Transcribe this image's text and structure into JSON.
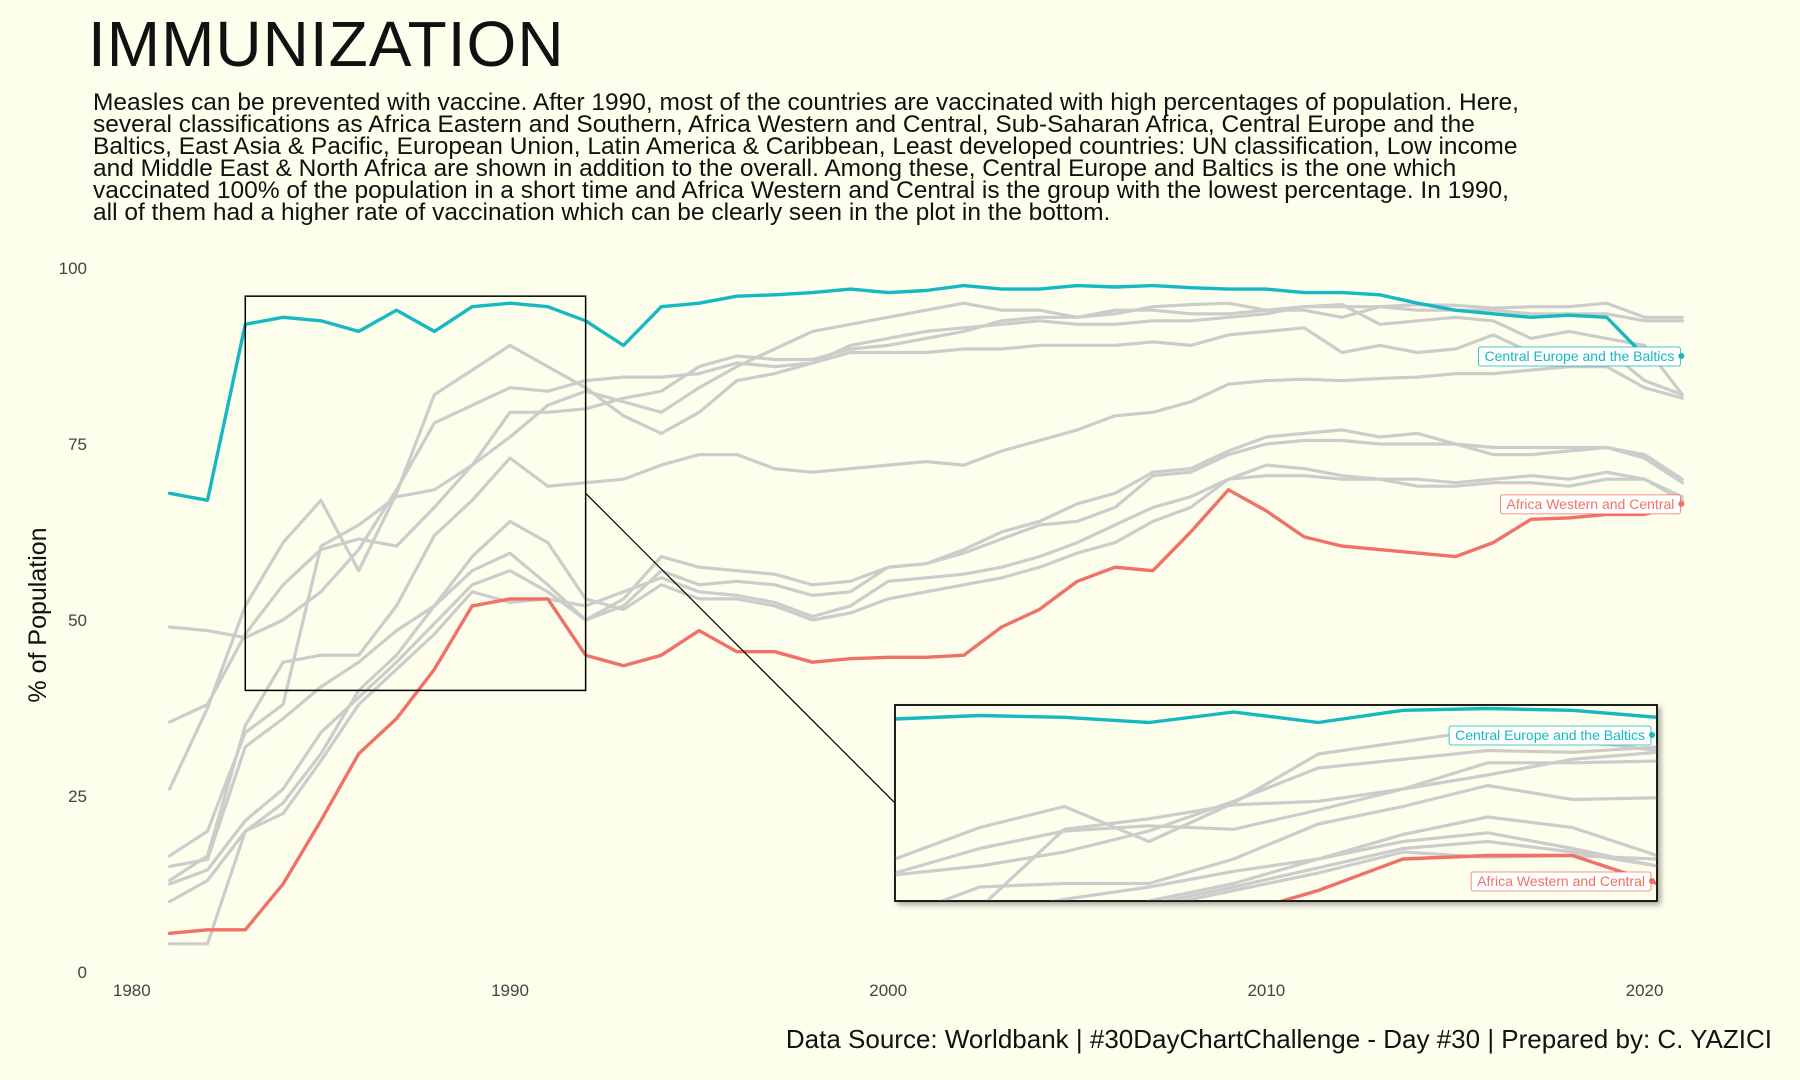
{
  "title": "IMMUNIZATION",
  "subtitle": "Measles can be prevented with vaccine. After 1990, most of the countries are vaccinated with high percentages of population. Here, several classifications as Africa Eastern and Southern, Africa Western and Central, Sub-Saharan Africa, Central Europe and the Baltics, East Asia & Pacific, European Union, Latin America & Caribbean, Least developed countries: UN classification, Low income and Middle East & North Africa are shown in addition to the overall. Among these, Central Europe and Baltics is the one which vaccinated 100% of the population in a short time and Africa Western and Central is the group with the lowest percentage. In 1990, all of them had a higher rate of vaccination which can be clearly seen in the plot in the bottom.",
  "caption": "Data Source: Worldbank  | #30DayChartChallenge - Day #30 | Prepared by: C. YAZICI",
  "colors": {
    "background": "#fefeec",
    "central_europe": "#16b8c1",
    "africa_western": "#f07167",
    "other": "#cccccc"
  },
  "chart_data": {
    "type": "line",
    "xlabel": "",
    "ylabel": "% of Population",
    "xlim": [
      1979,
      2023
    ],
    "ylim": [
      0,
      100
    ],
    "x_ticks": [
      1980,
      1990,
      2000,
      2010,
      2020
    ],
    "y_ticks": [
      0,
      25,
      50,
      75,
      100
    ],
    "grid": false,
    "x": [
      1981,
      1982,
      1983,
      1984,
      1985,
      1986,
      1987,
      1988,
      1989,
      1990,
      1991,
      1992,
      1993,
      1994,
      1995,
      1996,
      1997,
      1998,
      1999,
      2000,
      2001,
      2002,
      2003,
      2004,
      2005,
      2006,
      2007,
      2008,
      2009,
      2010,
      2011,
      2012,
      2013,
      2014,
      2015,
      2016,
      2017,
      2018,
      2019,
      2020,
      2021
    ],
    "series": [
      {
        "name": "Central Europe and the Baltics",
        "highlight": true,
        "color": "#16b8c1",
        "values": [
          68,
          67,
          92,
          93,
          92.5,
          91,
          94,
          91,
          94.5,
          95,
          94.5,
          92.5,
          89,
          94.5,
          95,
          96,
          96.2,
          96.5,
          97,
          96.5,
          96.8,
          97.5,
          97,
          97,
          97.5,
          97.3,
          97.5,
          97.2,
          97,
          97,
          96.5,
          96.5,
          96.2,
          95,
          94,
          93.5,
          93,
          93.3,
          93,
          87.5,
          87.5
        ]
      },
      {
        "name": "Africa Western and Central",
        "highlight": true,
        "color": "#f07167",
        "values": [
          5.5,
          6,
          6,
          12.5,
          21.5,
          31,
          36,
          43,
          52,
          53,
          53,
          45,
          43.5,
          45,
          48.5,
          45.5,
          45.5,
          44,
          44.5,
          44.7,
          44.7,
          45,
          49,
          51.5,
          55.5,
          57.5,
          57,
          62.5,
          68.5,
          65.5,
          61.8,
          60.5,
          60,
          59.5,
          59,
          61,
          64.3,
          64.5,
          65,
          65,
          66.5
        ]
      },
      {
        "values": [
          16.5,
          20,
          34,
          38,
          60.5,
          63.5,
          67.5,
          68.5,
          72,
          79.5,
          79.5,
          80,
          81.5,
          82.5,
          86,
          87.5,
          87,
          87,
          88.5,
          89,
          90,
          91,
          92.5,
          93,
          93,
          94,
          94,
          93.5,
          93.5,
          94,
          94.5,
          94.5,
          94.5,
          94,
          94,
          94,
          93.5,
          93.5,
          93.5,
          92.5,
          92.5
        ]
      },
      {
        "values": [
          35.5,
          38,
          48,
          55,
          60,
          61.5,
          60.5,
          66,
          72,
          76,
          80.5,
          82.5,
          81,
          79.5,
          83,
          86,
          88.5,
          91,
          92,
          93,
          94,
          95,
          94,
          94,
          93,
          93.5,
          94.5,
          94.8,
          95,
          94,
          94,
          93,
          94.5,
          94.8,
          94.7,
          94.3,
          94.5,
          94.5,
          95,
          93,
          93
        ]
      },
      {
        "values": [
          26,
          37.5,
          52,
          61,
          67,
          57,
          68,
          82,
          85.5,
          89,
          86,
          83,
          79,
          76.5,
          79.5,
          84,
          85,
          86.5,
          89,
          90,
          91,
          91.5,
          92,
          92.5,
          92,
          92,
          92.5,
          92.5,
          93,
          93.5,
          94.5,
          94.8,
          92,
          92.5,
          93,
          92.5,
          90,
          91,
          90,
          89,
          82
        ]
      },
      {
        "values": [
          12.5,
          14.5,
          21.5,
          26,
          34,
          39,
          44,
          49.5,
          55,
          57,
          54,
          50,
          53,
          59,
          57.5,
          57,
          56.5,
          55,
          55.5,
          57.5,
          58,
          60,
          62.5,
          64,
          66.5,
          68,
          71,
          71.5,
          74,
          76,
          76.5,
          77,
          76,
          76.5,
          75,
          73.5,
          73.5,
          74,
          74.5,
          73.5,
          70
        ]
      },
      {
        "values": [
          15,
          16,
          32,
          36,
          40.5,
          44,
          48.5,
          52,
          57,
          59.5,
          55,
          50,
          52,
          57,
          55,
          55.5,
          55,
          53.5,
          54,
          57.5,
          58,
          59.5,
          61.5,
          63.5,
          64,
          66,
          70.5,
          71,
          73.5,
          75,
          75.5,
          75.5,
          75,
          75,
          75,
          74.5,
          74.5,
          74.5,
          74.5,
          73,
          69.5
        ]
      },
      {
        "values": [
          13,
          16.5,
          35,
          44,
          45,
          45,
          52,
          62,
          67,
          73,
          69,
          69.5,
          70,
          72,
          73.5,
          73.5,
          71.5,
          71,
          71.5,
          72,
          72.5,
          72,
          74,
          75.5,
          77,
          79,
          79.5,
          81,
          83.5,
          84,
          84.2,
          84,
          84.3,
          84.5,
          85,
          85,
          85.5,
          86,
          86,
          83,
          81.5
        ]
      },
      {
        "values": [
          49,
          48.5,
          47.5,
          50,
          54,
          60,
          68.5,
          78,
          80.5,
          83,
          82.5,
          84,
          84.5,
          84.5,
          85,
          86.5,
          86,
          86.5,
          88,
          88,
          88,
          88.5,
          88.5,
          89,
          89,
          89,
          89.5,
          89,
          90.5,
          91,
          91.5,
          88,
          89,
          88,
          88.5,
          90.5,
          88,
          88.5,
          88.5,
          84,
          82
        ]
      },
      {
        "values": [
          4,
          4,
          20,
          24,
          31,
          40,
          45,
          52,
          59,
          64,
          61,
          53,
          51.5,
          55,
          53,
          53,
          52,
          50,
          51,
          53,
          54,
          55,
          56,
          57.5,
          59.5,
          61,
          64,
          66,
          70,
          72,
          71.5,
          70.5,
          70,
          70,
          69.5,
          70,
          70.5,
          70,
          71,
          70,
          67
        ]
      },
      {
        "values": [
          10,
          13,
          20,
          22.5,
          30,
          38,
          43,
          48,
          54,
          52.5,
          53,
          52,
          54,
          56,
          54,
          53.5,
          52.5,
          50.5,
          52,
          55.5,
          56,
          56.5,
          57.5,
          59,
          61,
          63.5,
          66,
          67.5,
          70,
          70.5,
          70.5,
          70,
          70,
          69,
          69,
          69.5,
          69.5,
          69,
          70,
          70,
          67.5
        ]
      }
    ],
    "zoom_box": {
      "x_range": [
        1983,
        1992
      ],
      "y_range": [
        40,
        96
      ]
    },
    "inset": {
      "x_range": [
        2000,
        2020
      ]
    }
  }
}
